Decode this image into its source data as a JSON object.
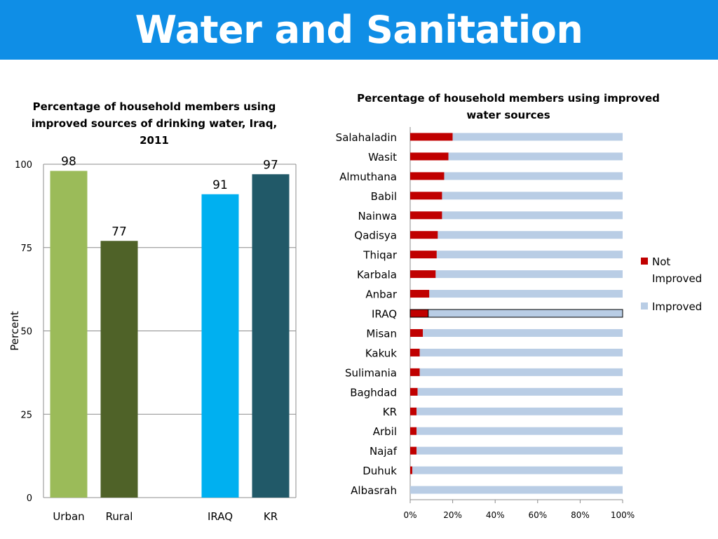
{
  "header": {
    "title": "Water and Sanitation"
  },
  "colors": {
    "banner": "#0f8ee6",
    "urban": "#9bbb59",
    "rural": "#4f6228",
    "iraq": "#00b0f0",
    "kr": "#215968",
    "not_improved": "#c00000",
    "improved": "#b9cde5"
  },
  "chart_data": [
    {
      "type": "bar",
      "title": "Percentage of household members using improved sources of drinking water, Iraq, 2011",
      "ylabel": "Percent",
      "xlabel": "",
      "ylim": [
        0,
        100
      ],
      "yticks": [
        "0",
        "25",
        "50",
        "75",
        "100"
      ],
      "categories": [
        "Urban",
        "Rural",
        "IRAQ",
        "KR"
      ],
      "values": [
        98,
        77,
        91,
        97
      ],
      "data_labels": [
        "98",
        "77",
        "91",
        "97"
      ],
      "bar_colors": [
        "#9bbb59",
        "#4f6228",
        "#00b0f0",
        "#215968"
      ],
      "grid": true
    },
    {
      "type": "bar",
      "orientation": "horizontal",
      "stacked": "percent",
      "title": "Percentage of household members using improved water sources",
      "categories": [
        "Salahaladin",
        "Wasit",
        "Almuthana",
        "Babil",
        "Nainwa",
        "Qadisya",
        "Thiqar",
        "Karbala",
        "Anbar",
        "IRAQ",
        "Misan",
        "Kakuk",
        "Sulimania",
        "Baghdad",
        "KR",
        "Arbil",
        "Najaf",
        "Duhuk",
        "Albasrah"
      ],
      "highlighted_category": "IRAQ",
      "xticks": [
        "0%",
        "20%",
        "40%",
        "60%",
        "80%",
        "100%"
      ],
      "xlim": [
        0,
        100
      ],
      "series": [
        {
          "name": "Not Improved",
          "color": "#c00000",
          "values": [
            20,
            18,
            16,
            15,
            15,
            13,
            12.5,
            12,
            9,
            8.5,
            6,
            4.5,
            4.5,
            3.5,
            3,
            3,
            3,
            1,
            0
          ]
        },
        {
          "name": "Improved",
          "color": "#b9cde5",
          "values": [
            80,
            82,
            84,
            85,
            85,
            87,
            87.5,
            88,
            91,
            91.5,
            94,
            95.5,
            95.5,
            96.5,
            97,
            97,
            97,
            99,
            100
          ]
        }
      ],
      "legend_position": "right",
      "grid": false
    }
  ]
}
